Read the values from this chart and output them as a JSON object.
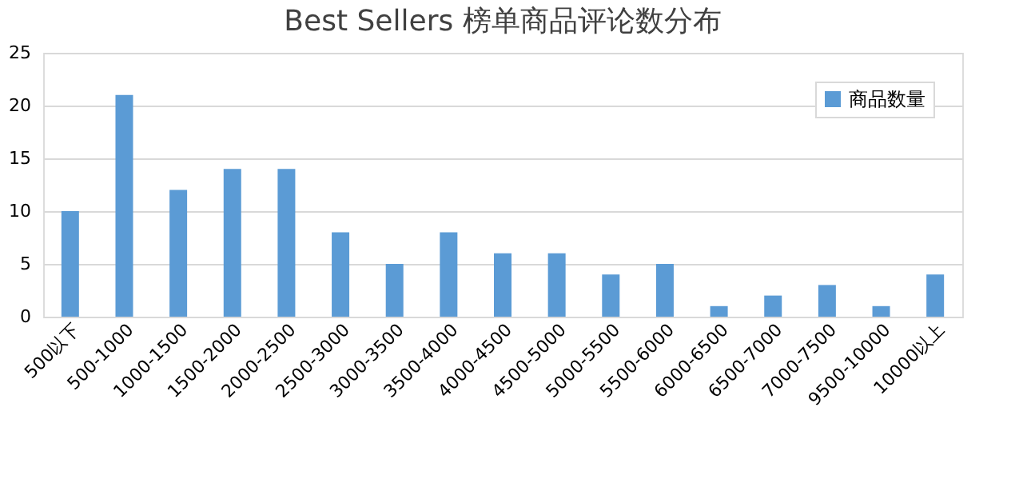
{
  "chart_data": {
    "type": "bar",
    "title": "Best Sellers 榜单商品评论数分布",
    "categories": [
      "500以下",
      "500-1000",
      "1000-1500",
      "1500-2000",
      "2000-2500",
      "2500-3000",
      "3000-3500",
      "3500-4000",
      "4000-4500",
      "4500-5000",
      "5000-5500",
      "5500-6000",
      "6000-6500",
      "6500-7000",
      "7000-7500",
      "9500-10000",
      "10000以上"
    ],
    "series": [
      {
        "name": "商品数量",
        "color": "#5b9bd5",
        "values": [
          10,
          21,
          12,
          14,
          14,
          8,
          5,
          8,
          6,
          6,
          4,
          5,
          1,
          2,
          3,
          1,
          4
        ]
      }
    ],
    "ylim": [
      0,
      25
    ],
    "yticks": [
      0,
      5,
      10,
      15,
      20,
      25
    ],
    "grid": "y",
    "legend": "top right"
  }
}
